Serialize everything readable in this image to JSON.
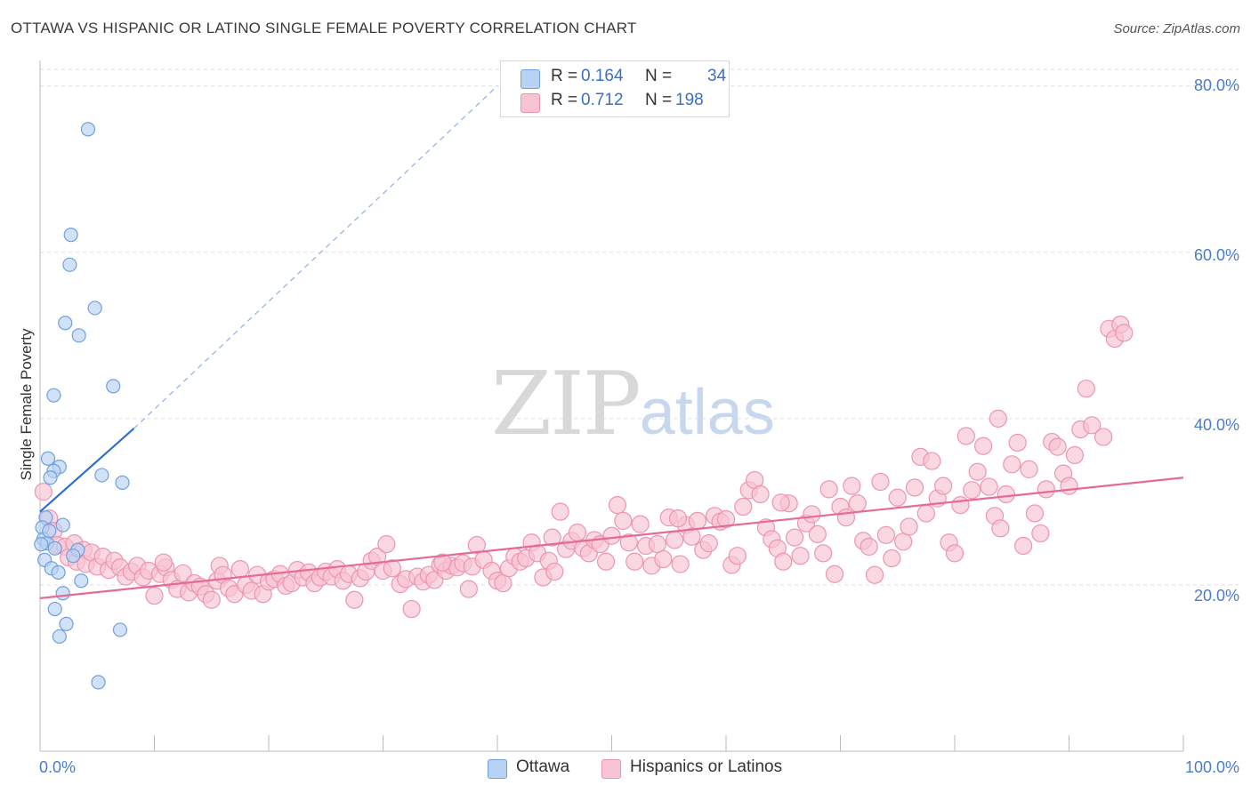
{
  "header": {
    "title": "OTTAWA VS HISPANIC OR LATINO SINGLE FEMALE POVERTY CORRELATION CHART",
    "source": "Source: ZipAtlas.com"
  },
  "legend": {
    "rows": [
      {
        "r_label": "R =",
        "r_value": "0.164",
        "n_label": "N =",
        "n_value": "34"
      },
      {
        "r_label": "R =",
        "r_value": "0.712",
        "n_label": "N =",
        "n_value": "198"
      }
    ]
  },
  "watermark": {
    "zip": "ZIP",
    "atlas": "atlas"
  },
  "colors": {
    "ottawa_fill": "#b8d2f3",
    "ottawa_stroke": "#6f9fe0",
    "ottawa_line": "#2f6fcc",
    "hispanic_fill": "#f8c3d3",
    "hispanic_stroke": "#ee94b0",
    "hispanic_line": "#e66a96",
    "tick_text": "#4a7cc9",
    "grid": "#dddddd"
  },
  "bottom_legend": {
    "ottawa": "Ottawa",
    "hispanic": "Hispanics or Latinos"
  },
  "chart_data": {
    "type": "scatter",
    "title": "OTTAWA VS HISPANIC OR LATINO SINGLE FEMALE POVERTY CORRELATION CHART",
    "xlabel": "",
    "ylabel": "Single Female Poverty",
    "xlim": [
      0,
      100
    ],
    "ylim": [
      0,
      82
    ],
    "x_tick_labels": [
      "0.0%",
      "100.0%"
    ],
    "y_ticks": [
      20,
      40,
      60,
      80
    ],
    "y_tick_labels": [
      "20.0%",
      "40.0%",
      "60.0%",
      "80.0%"
    ],
    "grid": true,
    "legend_position": "top-center",
    "series": [
      {
        "name": "Ottawa",
        "r": 0.164,
        "n": 34,
        "trend": {
          "x": [
            0,
            8.2
          ],
          "y": [
            28.8,
            38.8
          ],
          "dashed_extension_to": [
            40,
            80
          ]
        },
        "points": [
          [
            4.2,
            74.8
          ],
          [
            2.7,
            62.1
          ],
          [
            2.6,
            58.5
          ],
          [
            4.8,
            53.3
          ],
          [
            2.2,
            51.5
          ],
          [
            3.4,
            50.0
          ],
          [
            1.2,
            42.8
          ],
          [
            6.4,
            43.9
          ],
          [
            0.7,
            35.2
          ],
          [
            1.7,
            34.2
          ],
          [
            1.2,
            33.7
          ],
          [
            0.9,
            32.9
          ],
          [
            5.4,
            33.2
          ],
          [
            7.2,
            32.3
          ],
          [
            0.5,
            28.1
          ],
          [
            0.2,
            26.9
          ],
          [
            2.0,
            27.2
          ],
          [
            0.3,
            25.5
          ],
          [
            0.6,
            25.0
          ],
          [
            1.3,
            24.4
          ],
          [
            3.3,
            24.2
          ],
          [
            0.4,
            23.0
          ],
          [
            1.0,
            22.0
          ],
          [
            1.6,
            21.5
          ],
          [
            3.6,
            20.5
          ],
          [
            2.0,
            19.0
          ],
          [
            1.3,
            17.1
          ],
          [
            2.3,
            15.3
          ],
          [
            1.7,
            13.8
          ],
          [
            7.0,
            14.6
          ],
          [
            5.1,
            8.3
          ],
          [
            0.1,
            24.9
          ],
          [
            0.8,
            26.5
          ],
          [
            2.9,
            23.5
          ]
        ]
      },
      {
        "name": "Hispanics or Latinos",
        "r": 0.712,
        "n": 198,
        "trend": {
          "x": [
            0,
            100
          ],
          "y": [
            18.4,
            32.9
          ]
        },
        "points": [
          [
            0.3,
            31.2
          ],
          [
            0.8,
            28.0
          ],
          [
            1.2,
            26.5
          ],
          [
            1.5,
            24.8
          ],
          [
            2.2,
            24.6
          ],
          [
            2.5,
            23.3
          ],
          [
            3.0,
            25.0
          ],
          [
            3.2,
            22.8
          ],
          [
            3.8,
            24.2
          ],
          [
            4.0,
            22.5
          ],
          [
            4.5,
            23.9
          ],
          [
            5.0,
            22.2
          ],
          [
            5.5,
            23.4
          ],
          [
            6.0,
            21.8
          ],
          [
            6.5,
            22.9
          ],
          [
            7.0,
            22.1
          ],
          [
            7.5,
            21.0
          ],
          [
            8.0,
            21.6
          ],
          [
            8.5,
            22.3
          ],
          [
            9.0,
            20.9
          ],
          [
            9.5,
            21.7
          ],
          [
            10.0,
            18.7
          ],
          [
            10.5,
            21.3
          ],
          [
            11.0,
            22.1
          ],
          [
            11.5,
            20.6
          ],
          [
            12.0,
            19.5
          ],
          [
            12.5,
            21.4
          ],
          [
            13.0,
            19.1
          ],
          [
            13.5,
            20.2
          ],
          [
            14.0,
            19.8
          ],
          [
            14.5,
            18.9
          ],
          [
            15.0,
            18.2
          ],
          [
            15.5,
            20.5
          ],
          [
            15.7,
            22.3
          ],
          [
            16.0,
            21.2
          ],
          [
            16.5,
            19.6
          ],
          [
            17.0,
            18.9
          ],
          [
            17.5,
            21.9
          ],
          [
            18.0,
            20.0
          ],
          [
            18.5,
            19.3
          ],
          [
            19.0,
            21.2
          ],
          [
            19.5,
            18.9
          ],
          [
            20.0,
            20.4
          ],
          [
            20.5,
            20.7
          ],
          [
            21.0,
            21.3
          ],
          [
            21.5,
            19.9
          ],
          [
            22.0,
            20.2
          ],
          [
            22.5,
            21.8
          ],
          [
            23.0,
            20.9
          ],
          [
            23.5,
            21.5
          ],
          [
            24.0,
            20.2
          ],
          [
            24.5,
            20.9
          ],
          [
            25.0,
            21.6
          ],
          [
            25.5,
            21.0
          ],
          [
            26.0,
            21.9
          ],
          [
            26.5,
            20.5
          ],
          [
            27.0,
            21.3
          ],
          [
            27.5,
            18.2
          ],
          [
            28.0,
            20.8
          ],
          [
            28.5,
            21.6
          ],
          [
            29.0,
            22.9
          ],
          [
            29.5,
            23.4
          ],
          [
            30.0,
            21.7
          ],
          [
            30.3,
            24.9
          ],
          [
            30.8,
            22.0
          ],
          [
            31.5,
            20.1
          ],
          [
            32.0,
            20.7
          ],
          [
            32.5,
            17.1
          ],
          [
            33.0,
            21.0
          ],
          [
            33.5,
            20.4
          ],
          [
            34.0,
            21.2
          ],
          [
            34.5,
            20.6
          ],
          [
            35.0,
            22.4
          ],
          [
            35.5,
            21.7
          ],
          [
            36.0,
            22.3
          ],
          [
            36.5,
            22.1
          ],
          [
            37.0,
            22.6
          ],
          [
            37.5,
            19.5
          ],
          [
            37.8,
            22.2
          ],
          [
            38.2,
            24.8
          ],
          [
            38.8,
            23.0
          ],
          [
            39.5,
            21.7
          ],
          [
            40.0,
            20.5
          ],
          [
            40.5,
            20.2
          ],
          [
            41.0,
            22.0
          ],
          [
            41.5,
            23.4
          ],
          [
            42.0,
            22.8
          ],
          [
            42.5,
            23.2
          ],
          [
            43.0,
            25.1
          ],
          [
            43.5,
            23.8
          ],
          [
            44.0,
            20.9
          ],
          [
            44.5,
            22.9
          ],
          [
            45.0,
            21.6
          ],
          [
            45.5,
            28.8
          ],
          [
            46.0,
            24.3
          ],
          [
            46.5,
            25.3
          ],
          [
            47.0,
            26.3
          ],
          [
            47.5,
            24.4
          ],
          [
            48.0,
            23.8
          ],
          [
            48.5,
            25.4
          ],
          [
            49.0,
            24.9
          ],
          [
            49.5,
            22.8
          ],
          [
            50.0,
            25.9
          ],
          [
            50.5,
            29.6
          ],
          [
            51.0,
            27.7
          ],
          [
            51.5,
            25.1
          ],
          [
            52.0,
            22.8
          ],
          [
            52.5,
            27.3
          ],
          [
            53.0,
            24.7
          ],
          [
            53.5,
            22.3
          ],
          [
            54.0,
            24.9
          ],
          [
            54.5,
            23.1
          ],
          [
            55.0,
            28.1
          ],
          [
            55.5,
            25.4
          ],
          [
            56.0,
            22.5
          ],
          [
            56.5,
            27.2
          ],
          [
            57.0,
            25.8
          ],
          [
            57.5,
            27.7
          ],
          [
            58.0,
            24.2
          ],
          [
            58.5,
            25.0
          ],
          [
            59.0,
            28.3
          ],
          [
            59.5,
            27.6
          ],
          [
            60.0,
            27.9
          ],
          [
            60.5,
            22.4
          ],
          [
            61.0,
            23.5
          ],
          [
            61.5,
            29.4
          ],
          [
            62.0,
            31.4
          ],
          [
            62.5,
            32.6
          ],
          [
            63.0,
            30.9
          ],
          [
            63.5,
            26.9
          ],
          [
            64.0,
            25.5
          ],
          [
            64.5,
            24.4
          ],
          [
            65.0,
            22.8
          ],
          [
            65.5,
            29.8
          ],
          [
            66.0,
            25.7
          ],
          [
            66.5,
            23.5
          ],
          [
            67.0,
            27.4
          ],
          [
            67.5,
            28.5
          ],
          [
            68.0,
            26.1
          ],
          [
            68.5,
            23.8
          ],
          [
            69.0,
            31.5
          ],
          [
            69.5,
            21.3
          ],
          [
            70.0,
            29.4
          ],
          [
            70.5,
            28.1
          ],
          [
            71.0,
            31.9
          ],
          [
            71.5,
            29.8
          ],
          [
            72.0,
            25.3
          ],
          [
            72.5,
            24.6
          ],
          [
            73.0,
            21.2
          ],
          [
            73.5,
            32.4
          ],
          [
            74.0,
            26.0
          ],
          [
            74.5,
            23.2
          ],
          [
            75.0,
            30.5
          ],
          [
            75.5,
            25.2
          ],
          [
            76.0,
            27.0
          ],
          [
            76.5,
            31.7
          ],
          [
            77.0,
            35.4
          ],
          [
            77.5,
            28.6
          ],
          [
            78.0,
            34.9
          ],
          [
            78.5,
            30.4
          ],
          [
            79.0,
            31.9
          ],
          [
            79.5,
            25.1
          ],
          [
            80.0,
            23.8
          ],
          [
            80.5,
            29.6
          ],
          [
            81.0,
            37.9
          ],
          [
            81.5,
            31.4
          ],
          [
            82.0,
            33.6
          ],
          [
            82.5,
            36.7
          ],
          [
            83.0,
            31.8
          ],
          [
            83.5,
            28.3
          ],
          [
            84.0,
            26.8
          ],
          [
            84.5,
            30.9
          ],
          [
            85.0,
            34.5
          ],
          [
            85.5,
            37.1
          ],
          [
            86.0,
            24.7
          ],
          [
            86.5,
            33.9
          ],
          [
            87.0,
            28.6
          ],
          [
            87.5,
            26.2
          ],
          [
            88.0,
            31.5
          ],
          [
            88.5,
            37.2
          ],
          [
            89.0,
            36.6
          ],
          [
            89.5,
            33.4
          ],
          [
            90.0,
            31.9
          ],
          [
            90.5,
            35.6
          ],
          [
            91.0,
            38.7
          ],
          [
            91.5,
            43.6
          ],
          [
            92.0,
            39.2
          ],
          [
            93.0,
            37.8
          ],
          [
            93.5,
            50.8
          ],
          [
            94.0,
            49.6
          ],
          [
            94.5,
            51.3
          ],
          [
            94.8,
            50.3
          ],
          [
            44.8,
            25.7
          ],
          [
            64.8,
            29.9
          ],
          [
            83.8,
            40.0
          ],
          [
            10.8,
            22.7
          ],
          [
            55.8,
            28.0
          ],
          [
            35.2,
            22.7
          ]
        ]
      }
    ]
  }
}
